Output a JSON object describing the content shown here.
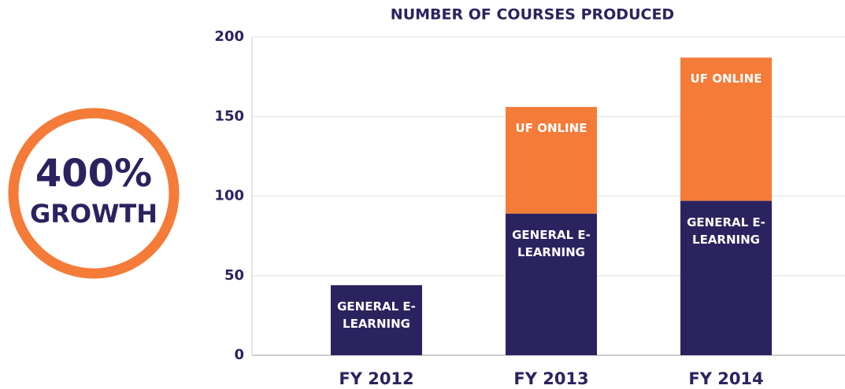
{
  "chart_data": {
    "type": "stacked_bar",
    "title": "NUMBER OF COURSES PRODUCED",
    "annotation_lines": [
      "400%",
      "GROWTH"
    ],
    "categories": [
      "FY 2012",
      "FY 2013",
      "FY 2014"
    ],
    "series": [
      {
        "name": "GENERAL E-LEARNING",
        "color": "#2b235f",
        "values": [
          44,
          89,
          97
        ]
      },
      {
        "name": "UF ONLINE",
        "color": "#f47b38",
        "values": [
          null,
          67,
          90
        ]
      }
    ],
    "ylim": [
      0,
      200
    ],
    "yticks": [
      0,
      50,
      100,
      150,
      200
    ],
    "grid": true
  }
}
